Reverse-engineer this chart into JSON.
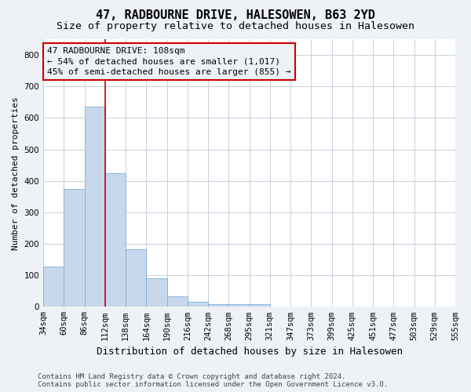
{
  "title": "47, RADBOURNE DRIVE, HALESOWEN, B63 2YD",
  "subtitle": "Size of property relative to detached houses in Halesowen",
  "xlabel": "Distribution of detached houses by size in Halesowen",
  "ylabel": "Number of detached properties",
  "bar_values": [
    128,
    375,
    635,
    425,
    183,
    90,
    32,
    15,
    8,
    8,
    8,
    0,
    0,
    0,
    0,
    0,
    0,
    0,
    0,
    0
  ],
  "bar_labels": [
    "34sqm",
    "60sqm",
    "86sqm",
    "112sqm",
    "138sqm",
    "164sqm",
    "190sqm",
    "216sqm",
    "242sqm",
    "268sqm",
    "295sqm",
    "321sqm",
    "347sqm",
    "373sqm",
    "399sqm",
    "425sqm",
    "451sqm",
    "477sqm",
    "503sqm",
    "529sqm",
    "555sqm"
  ],
  "bar_color": "#c8d8ec",
  "bar_edge_color": "#7bafd4",
  "vline_x": 3,
  "vline_color": "#cc0000",
  "annotation_line1": "47 RADBOURNE DRIVE: 108sqm",
  "annotation_line2": "← 54% of detached houses are smaller (1,017)",
  "annotation_line3": "45% of semi-detached houses are larger (855) →",
  "ylim": [
    0,
    850
  ],
  "yticks": [
    0,
    100,
    200,
    300,
    400,
    500,
    600,
    700,
    800
  ],
  "figure_bg": "#eef2f7",
  "plot_bg": "#ffffff",
  "grid_color": "#c8d0dc",
  "footer_text": "Contains HM Land Registry data © Crown copyright and database right 2024.\nContains public sector information licensed under the Open Government Licence v3.0.",
  "title_fontsize": 11,
  "subtitle_fontsize": 9.5,
  "ylabel_fontsize": 8,
  "xlabel_fontsize": 9,
  "tick_fontsize": 7.5,
  "annotation_fontsize": 8,
  "footer_fontsize": 6.5
}
